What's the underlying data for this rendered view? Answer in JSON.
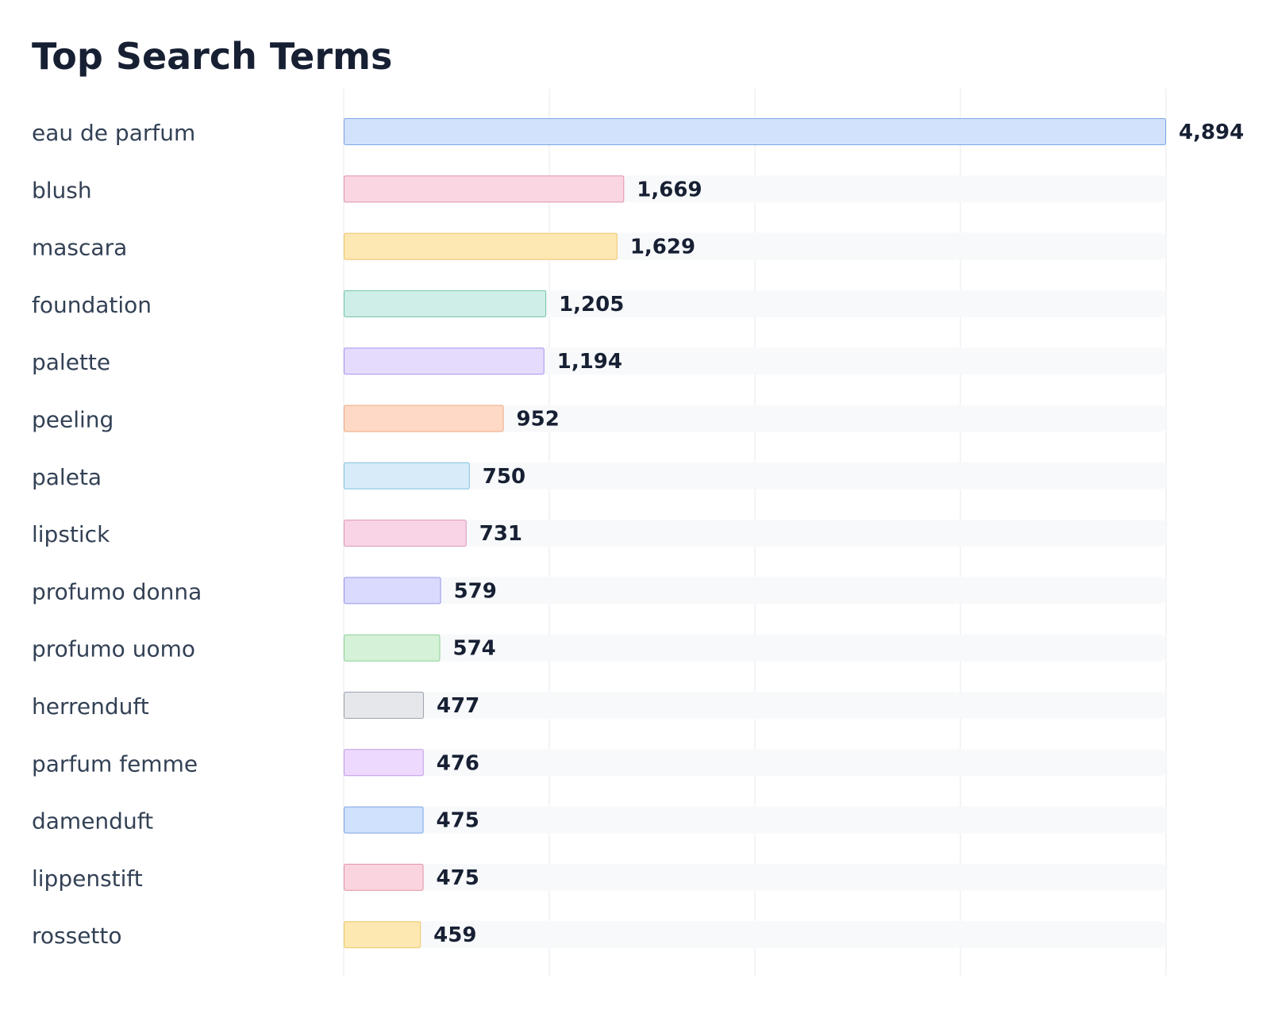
{
  "chart_data": {
    "type": "bar",
    "orientation": "horizontal",
    "title": "Top Search Terms",
    "xlabel": "",
    "ylabel": "",
    "xlim": [
      0,
      4894
    ],
    "grid": true,
    "legend": "none",
    "categories": [
      "eau de parfum",
      "blush",
      "mascara",
      "foundation",
      "palette",
      "peeling",
      "paleta",
      "lipstick",
      "profumo donna",
      "profumo uomo",
      "herrenduft",
      "parfum femme",
      "damenduft",
      "lippenstift",
      "rossetto"
    ],
    "values": [
      4894,
      1669,
      1629,
      1205,
      1194,
      952,
      750,
      731,
      579,
      574,
      477,
      476,
      475,
      475,
      459
    ],
    "value_labels": [
      "4,894",
      "1,669",
      "1,629",
      "1,205",
      "1,194",
      "952",
      "750",
      "731",
      "579",
      "574",
      "477",
      "476",
      "475",
      "475",
      "459"
    ],
    "bar_fills": [
      "#d3e2fc",
      "#f9d6e2",
      "#fde7b2",
      "#d0eee8",
      "#e5dcfd",
      "#fed9c5",
      "#d7ecf8",
      "#f8d4e6",
      "#d9dafd",
      "#d5f1d8",
      "#e5e7eb",
      "#ecd9fd",
      "#d0e1fd",
      "#fad4de",
      "#fde8b2"
    ],
    "bar_strokes": [
      "#7aa6e6",
      "#e293ad",
      "#ecc56b",
      "#6fc4ab",
      "#a992ec",
      "#eca983",
      "#80c1dc",
      "#dd96b8",
      "#9598e6",
      "#8dd096",
      "#9ca3af",
      "#c49ae6",
      "#79a6e4",
      "#e294a8",
      "#ecc76a"
    ],
    "track_color": "#f8f9fb",
    "grid_color": "#e8eaed"
  }
}
